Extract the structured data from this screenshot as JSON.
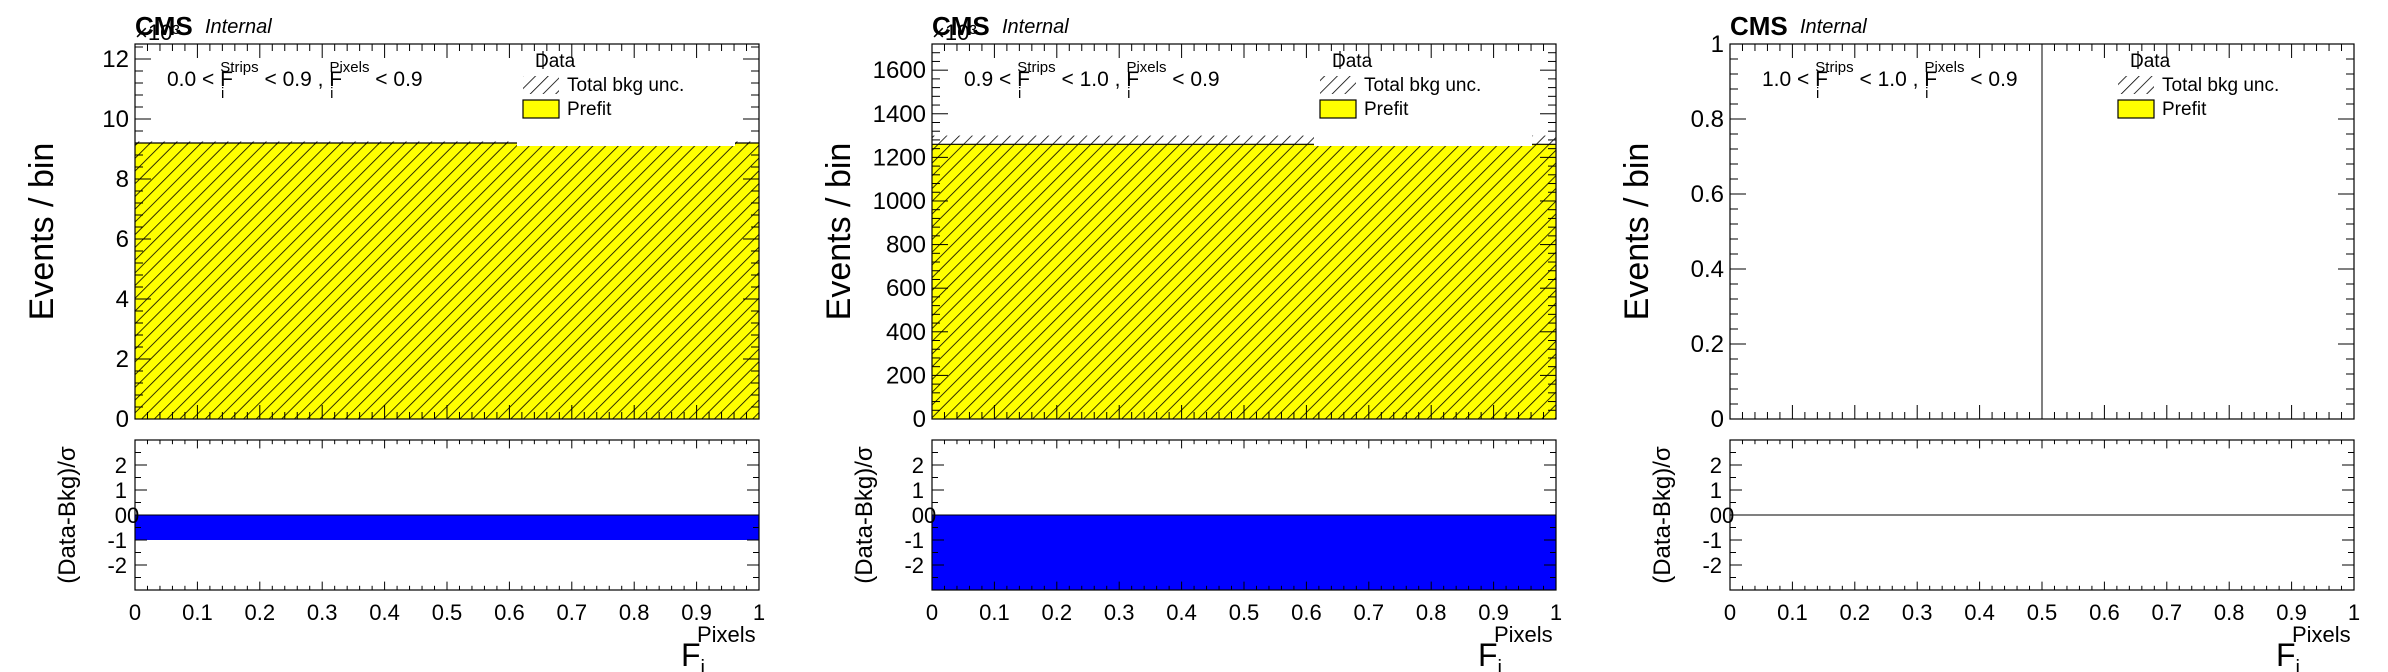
{
  "chart_data": [
    {
      "type": "bar",
      "header": {
        "experiment": "CMS",
        "status": "Internal"
      },
      "exponent_label": "×10³",
      "category_text": {
        "pre": "0.0 < F",
        "sup1": "Strips",
        "mid": " < 0.9 , F",
        "sup2": "Pixels",
        "post": " < 0.9"
      },
      "legend": [
        {
          "label": "Data",
          "kind": "marker"
        },
        {
          "label": "Total bkg unc.",
          "kind": "hatch"
        },
        {
          "label": "Prefit",
          "kind": "fill",
          "color": "#ffff00"
        }
      ],
      "ylabel": "Events / bin",
      "xlabel": {
        "base": "F",
        "sup": "Pixels",
        "sub": "i"
      },
      "xlim": [
        0,
        1
      ],
      "x_ticks": [
        "0",
        "0.1",
        "0.2",
        "0.3",
        "0.4",
        "0.5",
        "0.6",
        "0.7",
        "0.8",
        "0.9",
        "1"
      ],
      "ylim": [
        0,
        12.5
      ],
      "y_ticks": [
        "0",
        "2",
        "4",
        "6",
        "8",
        "10",
        "12"
      ],
      "bins": [
        0,
        1
      ],
      "prefit": [
        9.2
      ],
      "unc_low": [
        9.15
      ],
      "unc_high": [
        9.25
      ],
      "ratio": {
        "ylabel": "(Data-Bkg)/σ",
        "ylim": [
          -3,
          3
        ],
        "y_ticks": [
          "-2",
          "-1",
          "0",
          "1",
          "2"
        ],
        "values": [
          -1
        ],
        "color": "#0000ff"
      }
    },
    {
      "type": "bar",
      "header": {
        "experiment": "CMS",
        "status": "Internal"
      },
      "exponent_label": "×10³",
      "category_text": {
        "pre": "0.9 < F",
        "sup1": "Strips",
        "mid": " < 1.0 , F",
        "sup2": "Pixels",
        "post": " < 0.9"
      },
      "legend": [
        {
          "label": "Data",
          "kind": "marker"
        },
        {
          "label": "Total bkg unc.",
          "kind": "hatch"
        },
        {
          "label": "Prefit",
          "kind": "fill",
          "color": "#ffff00"
        }
      ],
      "ylabel": "Events / bin",
      "xlabel": {
        "base": "F",
        "sup": "Pixels",
        "sub": "i"
      },
      "xlim": [
        0,
        1
      ],
      "x_ticks": [
        "0",
        "0.1",
        "0.2",
        "0.3",
        "0.4",
        "0.5",
        "0.6",
        "0.7",
        "0.8",
        "0.9",
        "1"
      ],
      "ylim": [
        0,
        1720
      ],
      "y_ticks": [
        "0",
        "200",
        "400",
        "600",
        "800",
        "1000",
        "1200",
        "1400",
        "1600"
      ],
      "bins": [
        0,
        1
      ],
      "prefit": [
        1260
      ],
      "unc_low": [
        1260
      ],
      "unc_high": [
        1300
      ],
      "ratio": {
        "ylabel": "(Data-Bkg)/σ",
        "ylim": [
          -3,
          3
        ],
        "y_ticks": [
          "-2",
          "-1",
          "0",
          "1",
          "2"
        ],
        "values": [
          -3
        ],
        "color": "#0000ff"
      }
    },
    {
      "type": "bar",
      "header": {
        "experiment": "CMS",
        "status": "Internal"
      },
      "exponent_label": "",
      "category_text": {
        "pre": "1.0 < F",
        "sup1": "Strips",
        "mid": " < 1.0 , F",
        "sup2": "Pixels",
        "post": " < 0.9"
      },
      "legend": [
        {
          "label": "Data",
          "kind": "marker"
        },
        {
          "label": "Total bkg unc.",
          "kind": "hatch"
        },
        {
          "label": "Prefit",
          "kind": "fill",
          "color": "#ffff00"
        }
      ],
      "ylabel": "Events / bin",
      "xlabel": {
        "base": "F",
        "sup": "Pixels",
        "sub": "i"
      },
      "xlim": [
        0,
        1
      ],
      "x_ticks": [
        "0",
        "0.1",
        "0.2",
        "0.3",
        "0.4",
        "0.5",
        "0.6",
        "0.7",
        "0.8",
        "0.9",
        "1"
      ],
      "ylim": [
        0,
        1
      ],
      "y_ticks": [
        "0",
        "0.2",
        "0.4",
        "0.6",
        "0.8",
        "1"
      ],
      "bins": [
        0,
        1
      ],
      "prefit": [],
      "unc_low": [],
      "unc_high": [],
      "ratio": {
        "ylabel": "(Data-Bkg)/σ",
        "ylim": [
          -3,
          3
        ],
        "y_ticks": [
          "-2",
          "-1",
          "0",
          "1",
          "2"
        ],
        "values": [],
        "color": "#0000ff"
      }
    }
  ]
}
